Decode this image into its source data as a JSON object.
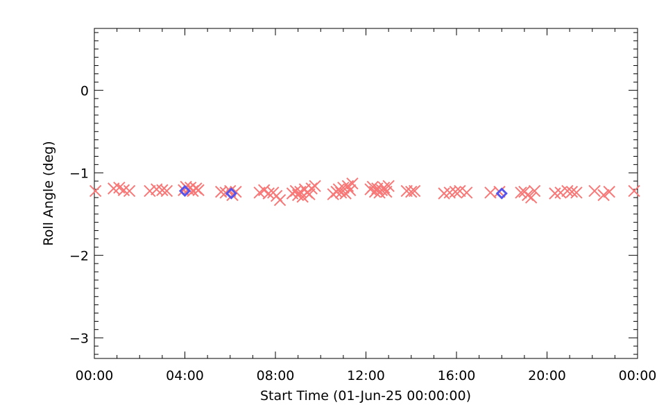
{
  "chart_data": {
    "type": "scatter",
    "xlabel": "Start Time (01-Jun-25 00:00:00)",
    "ylabel": "Roll Angle (deg)",
    "x_unit": "hours",
    "xlim": [
      0,
      24
    ],
    "ylim": [
      -3.25,
      0.75
    ],
    "x_ticks": [
      {
        "value": 0,
        "label": "00:00"
      },
      {
        "value": 4,
        "label": "04:00"
      },
      {
        "value": 8,
        "label": "08:00"
      },
      {
        "value": 12,
        "label": "12:00"
      },
      {
        "value": 16,
        "label": "16:00"
      },
      {
        "value": 20,
        "label": "20:00"
      },
      {
        "value": 24,
        "label": "00:00"
      }
    ],
    "y_ticks": [
      {
        "value": 0,
        "label": "0"
      },
      {
        "value": -1,
        "label": "−1"
      },
      {
        "value": -2,
        "label": "−2"
      },
      {
        "value": -3,
        "label": "−3"
      }
    ],
    "grid": false,
    "series": [
      {
        "marker": "x",
        "color": "#f87878",
        "points": [
          {
            "x": 0.05,
            "y": -1.22
          },
          {
            "x": 0.85,
            "y": -1.19
          },
          {
            "x": 1.1,
            "y": -1.18
          },
          {
            "x": 1.3,
            "y": -1.21
          },
          {
            "x": 1.55,
            "y": -1.22
          },
          {
            "x": 2.45,
            "y": -1.22
          },
          {
            "x": 2.75,
            "y": -1.2
          },
          {
            "x": 3.0,
            "y": -1.21
          },
          {
            "x": 3.2,
            "y": -1.22
          },
          {
            "x": 3.95,
            "y": -1.21
          },
          {
            "x": 4.05,
            "y": -1.17
          },
          {
            "x": 4.15,
            "y": -1.2
          },
          {
            "x": 4.25,
            "y": -1.18
          },
          {
            "x": 4.35,
            "y": -1.22
          },
          {
            "x": 4.5,
            "y": -1.19
          },
          {
            "x": 4.6,
            "y": -1.21
          },
          {
            "x": 5.6,
            "y": -1.23
          },
          {
            "x": 5.8,
            "y": -1.24
          },
          {
            "x": 6.0,
            "y": -1.22
          },
          {
            "x": 6.1,
            "y": -1.27
          },
          {
            "x": 6.25,
            "y": -1.23
          },
          {
            "x": 7.3,
            "y": -1.24
          },
          {
            "x": 7.5,
            "y": -1.21
          },
          {
            "x": 7.7,
            "y": -1.25
          },
          {
            "x": 7.9,
            "y": -1.24
          },
          {
            "x": 8.05,
            "y": -1.28
          },
          {
            "x": 8.2,
            "y": -1.33
          },
          {
            "x": 8.75,
            "y": -1.25
          },
          {
            "x": 8.9,
            "y": -1.22
          },
          {
            "x": 9.0,
            "y": -1.27
          },
          {
            "x": 9.1,
            "y": -1.23
          },
          {
            "x": 9.2,
            "y": -1.29
          },
          {
            "x": 9.3,
            "y": -1.2
          },
          {
            "x": 9.4,
            "y": -1.24
          },
          {
            "x": 9.5,
            "y": -1.26
          },
          {
            "x": 9.6,
            "y": -1.19
          },
          {
            "x": 9.75,
            "y": -1.16
          },
          {
            "x": 10.55,
            "y": -1.26
          },
          {
            "x": 10.7,
            "y": -1.23
          },
          {
            "x": 10.8,
            "y": -1.2
          },
          {
            "x": 10.9,
            "y": -1.24
          },
          {
            "x": 11.0,
            "y": -1.18
          },
          {
            "x": 11.1,
            "y": -1.25
          },
          {
            "x": 11.2,
            "y": -1.16
          },
          {
            "x": 11.3,
            "y": -1.21
          },
          {
            "x": 11.4,
            "y": -1.13
          },
          {
            "x": 12.2,
            "y": -1.2
          },
          {
            "x": 12.3,
            "y": -1.17
          },
          {
            "x": 12.4,
            "y": -1.23
          },
          {
            "x": 12.5,
            "y": -1.19
          },
          {
            "x": 12.6,
            "y": -1.24
          },
          {
            "x": 12.7,
            "y": -1.21
          },
          {
            "x": 12.8,
            "y": -1.18
          },
          {
            "x": 12.9,
            "y": -1.23
          },
          {
            "x": 13.0,
            "y": -1.16
          },
          {
            "x": 13.8,
            "y": -1.22
          },
          {
            "x": 14.0,
            "y": -1.23
          },
          {
            "x": 14.15,
            "y": -1.22
          },
          {
            "x": 15.45,
            "y": -1.25
          },
          {
            "x": 15.7,
            "y": -1.24
          },
          {
            "x": 15.95,
            "y": -1.23
          },
          {
            "x": 16.15,
            "y": -1.22
          },
          {
            "x": 16.45,
            "y": -1.24
          },
          {
            "x": 17.5,
            "y": -1.24
          },
          {
            "x": 17.9,
            "y": -1.23
          },
          {
            "x": 18.85,
            "y": -1.24
          },
          {
            "x": 19.0,
            "y": -1.23
          },
          {
            "x": 19.15,
            "y": -1.27
          },
          {
            "x": 19.3,
            "y": -1.3
          },
          {
            "x": 19.45,
            "y": -1.22
          },
          {
            "x": 20.35,
            "y": -1.25
          },
          {
            "x": 20.6,
            "y": -1.24
          },
          {
            "x": 20.9,
            "y": -1.22
          },
          {
            "x": 21.1,
            "y": -1.23
          },
          {
            "x": 21.3,
            "y": -1.24
          },
          {
            "x": 22.1,
            "y": -1.22
          },
          {
            "x": 22.5,
            "y": -1.27
          },
          {
            "x": 22.75,
            "y": -1.23
          },
          {
            "x": 23.85,
            "y": -1.22
          }
        ]
      },
      {
        "marker": "diamond",
        "color": "#5555ee",
        "points": [
          {
            "x": 4.0,
            "y": -1.22
          },
          {
            "x": 6.05,
            "y": -1.25
          },
          {
            "x": 18.0,
            "y": -1.25
          }
        ]
      }
    ]
  }
}
